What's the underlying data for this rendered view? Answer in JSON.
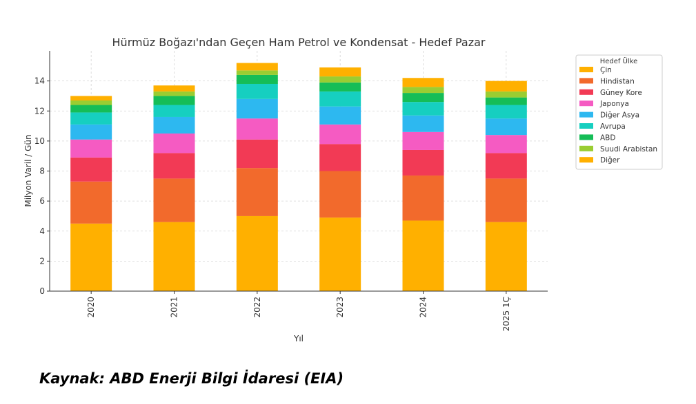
{
  "chart_data": {
    "type": "bar",
    "stacked": true,
    "title": "Hürmüz Boğazı'ndan Geçen Ham Petrol ve Kondensat - Hedef Pazar",
    "xlabel": "Yıl",
    "ylabel": "Milyon Varil / Gün",
    "ylim": [
      0,
      16
    ],
    "yticks": [
      0,
      2,
      4,
      6,
      8,
      10,
      12,
      14
    ],
    "grid": true,
    "legend_title": "Hedef Ülke",
    "legend_position": "right",
    "categories": [
      "2020",
      "2021",
      "2022",
      "2023",
      "2024",
      "2025 1Ç"
    ],
    "series": [
      {
        "name": "Çin",
        "color": "#FFB000",
        "values": [
          4.5,
          4.6,
          5.0,
          4.9,
          4.7,
          4.6
        ]
      },
      {
        "name": "Hindistan",
        "color": "#F26A2C",
        "values": [
          2.8,
          2.9,
          3.2,
          3.1,
          3.0,
          2.9
        ]
      },
      {
        "name": "Güney Kore",
        "color": "#F23A55",
        "values": [
          1.6,
          1.7,
          1.9,
          1.8,
          1.7,
          1.7
        ]
      },
      {
        "name": "Japonya",
        "color": "#F55BC2",
        "values": [
          1.2,
          1.3,
          1.4,
          1.3,
          1.2,
          1.2
        ]
      },
      {
        "name": "Diğer Asya",
        "color": "#2DB8F0",
        "values": [
          1.0,
          1.1,
          1.3,
          1.2,
          1.1,
          1.1
        ]
      },
      {
        "name": "Avrupa",
        "color": "#16CFC0",
        "values": [
          0.8,
          0.8,
          1.0,
          1.0,
          0.9,
          0.9
        ]
      },
      {
        "name": "ABD",
        "color": "#15BD57",
        "values": [
          0.5,
          0.6,
          0.6,
          0.6,
          0.6,
          0.5
        ]
      },
      {
        "name": "Suudi Arabistan",
        "color": "#9ACD32",
        "values": [
          0.3,
          0.3,
          0.3,
          0.4,
          0.4,
          0.4
        ]
      },
      {
        "name": "Diğer",
        "color": "#FFB000",
        "values": [
          0.3,
          0.4,
          0.5,
          0.6,
          0.6,
          0.7
        ]
      }
    ]
  },
  "source_note": "Kaynak: ABD Enerji Bilgi İdaresi (EIA)"
}
